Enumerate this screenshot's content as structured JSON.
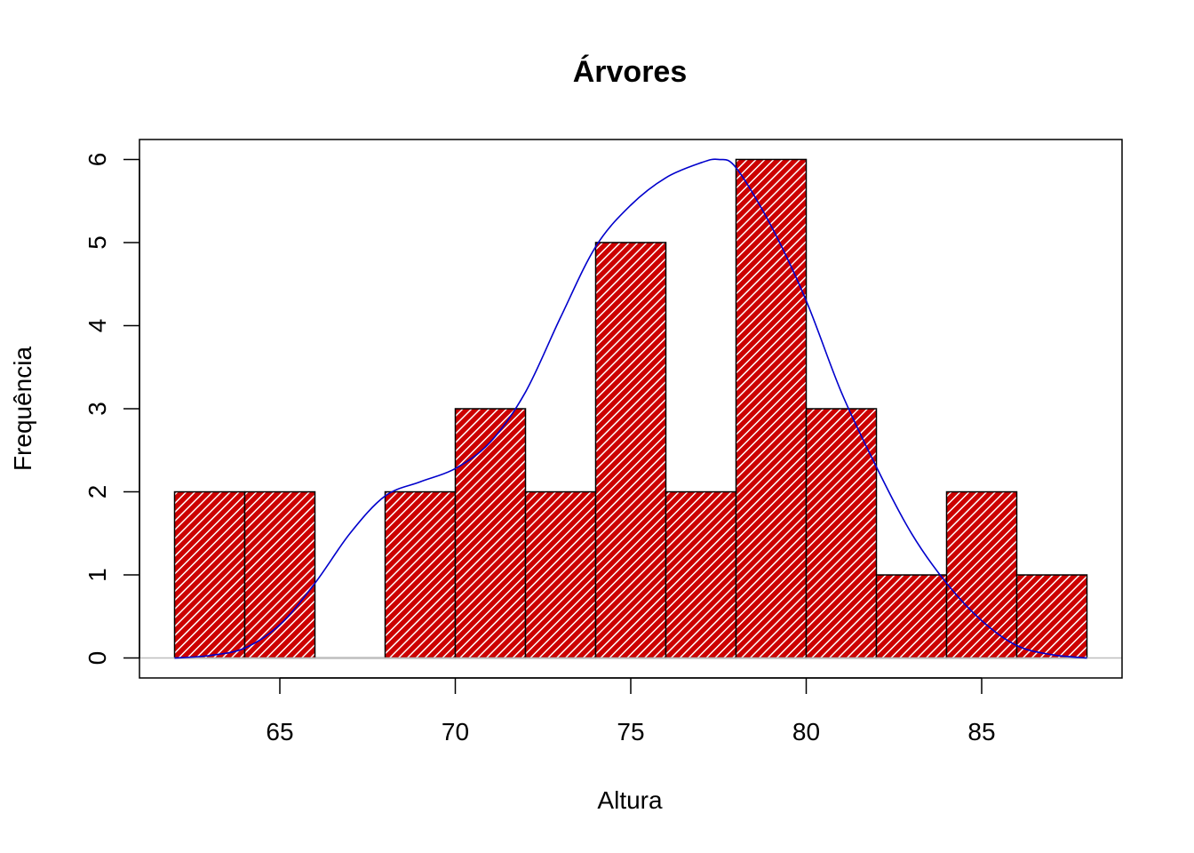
{
  "chart_data": {
    "type": "bar",
    "title": "Árvores",
    "xlabel": "Altura",
    "ylabel": "Frequência",
    "bins": [
      {
        "x0": 62,
        "x1": 64,
        "count": 2
      },
      {
        "x0": 64,
        "x1": 66,
        "count": 2
      },
      {
        "x0": 66,
        "x1": 68,
        "count": 0
      },
      {
        "x0": 68,
        "x1": 70,
        "count": 2
      },
      {
        "x0": 70,
        "x1": 72,
        "count": 3
      },
      {
        "x0": 72,
        "x1": 74,
        "count": 2
      },
      {
        "x0": 74,
        "x1": 76,
        "count": 5
      },
      {
        "x0": 76,
        "x1": 78,
        "count": 2
      },
      {
        "x0": 78,
        "x1": 80,
        "count": 6
      },
      {
        "x0": 80,
        "x1": 82,
        "count": 3
      },
      {
        "x0": 82,
        "x1": 84,
        "count": 1
      },
      {
        "x0": 84,
        "x1": 86,
        "count": 2
      },
      {
        "x0": 86,
        "x1": 88,
        "count": 1
      }
    ],
    "density_curve": {
      "x": [
        62,
        63,
        64,
        65,
        66,
        67,
        68,
        69,
        70,
        71,
        72,
        73,
        74,
        75,
        76,
        77,
        77.5,
        78,
        79,
        80,
        81,
        82,
        83,
        84,
        85,
        86,
        87,
        88
      ],
      "y": [
        0,
        0.03,
        0.12,
        0.4,
        0.9,
        1.5,
        1.95,
        2.12,
        2.28,
        2.6,
        3.2,
        4.1,
        4.95,
        5.45,
        5.78,
        5.96,
        6.0,
        5.9,
        5.2,
        4.3,
        3.2,
        2.3,
        1.5,
        0.9,
        0.45,
        0.15,
        0.04,
        0
      ]
    },
    "xlim": [
      61,
      89
    ],
    "ylim": [
      -0.24,
      6.24
    ],
    "xticks": [
      65,
      70,
      75,
      80,
      85
    ],
    "yticks": [
      0,
      1,
      2,
      3,
      4,
      5,
      6
    ],
    "bar_color": "#cc0000",
    "hatch_color": "#ffffff",
    "curve_color": "#0000cc",
    "baseline_color": "#bebebe"
  }
}
